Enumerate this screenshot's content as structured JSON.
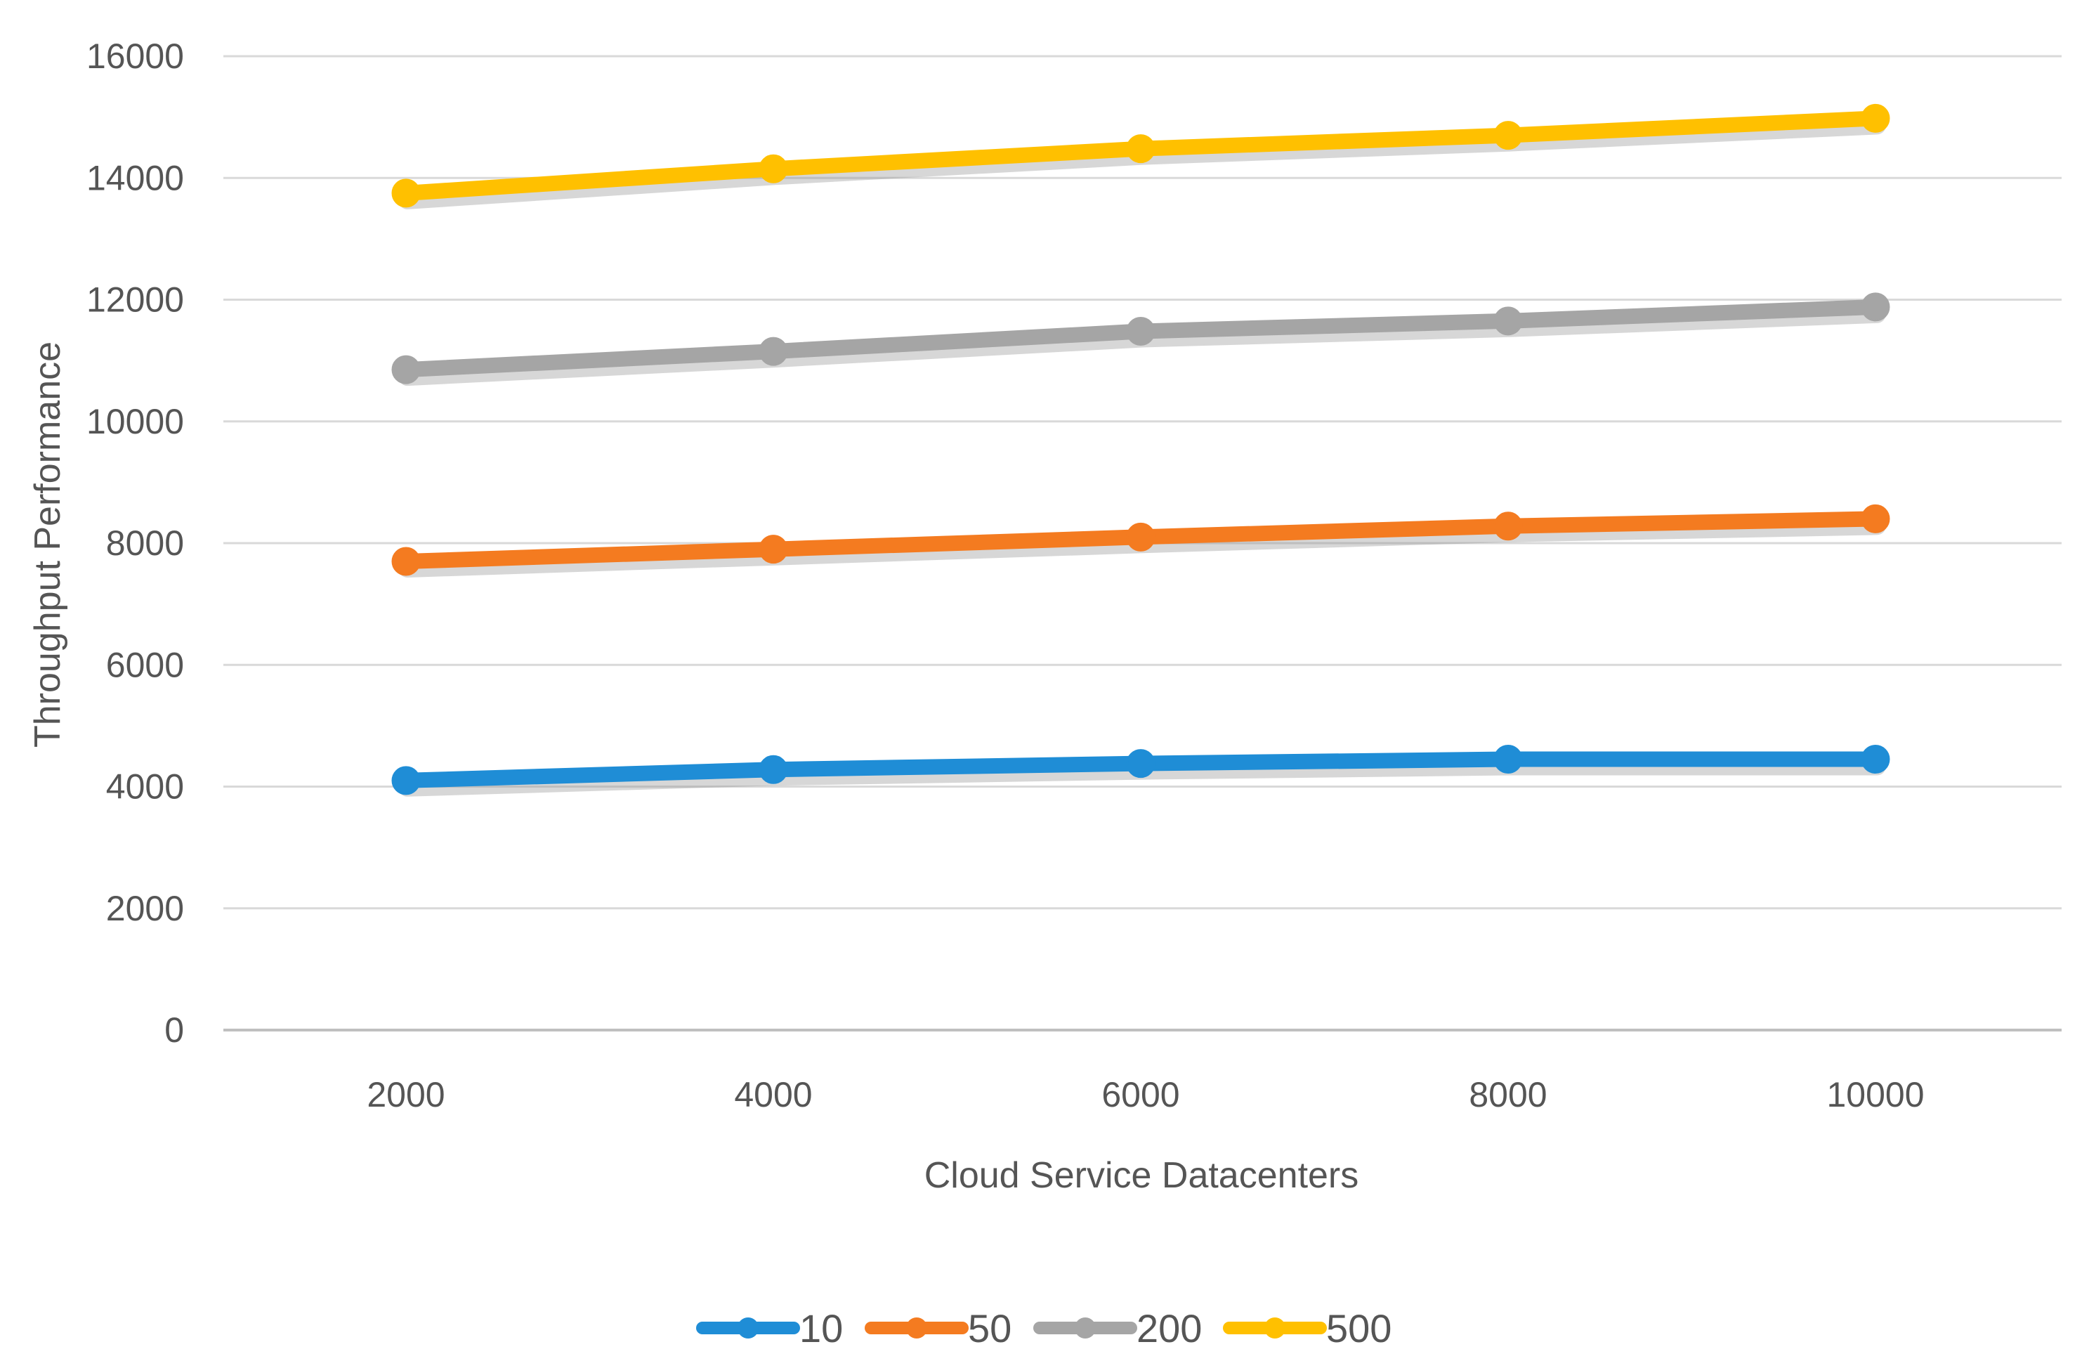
{
  "chart_data": {
    "type": "line",
    "title": "",
    "xlabel": "Cloud Service Datacenters",
    "ylabel": "Throughput Performance",
    "categories": [
      "2000",
      "4000",
      "6000",
      "8000",
      "10000"
    ],
    "ylim": [
      0,
      16000
    ],
    "yticks": [
      "0",
      "2000",
      "4000",
      "6000",
      "8000",
      "10000",
      "12000",
      "14000",
      "16000"
    ],
    "grid": true,
    "legend_position": "bottom",
    "series": [
      {
        "name": "10",
        "color": "#1f8dd6",
        "values": [
          4100,
          4280,
          4380,
          4450,
          4450
        ]
      },
      {
        "name": "50",
        "color": "#f47b20",
        "values": [
          7700,
          7900,
          8100,
          8280,
          8400
        ]
      },
      {
        "name": "200",
        "color": "#a5a5a5",
        "values": [
          10850,
          11150,
          11480,
          11650,
          11880
        ]
      },
      {
        "name": "500",
        "color": "#ffc000",
        "values": [
          13750,
          14150,
          14480,
          14700,
          14980
        ]
      }
    ]
  }
}
